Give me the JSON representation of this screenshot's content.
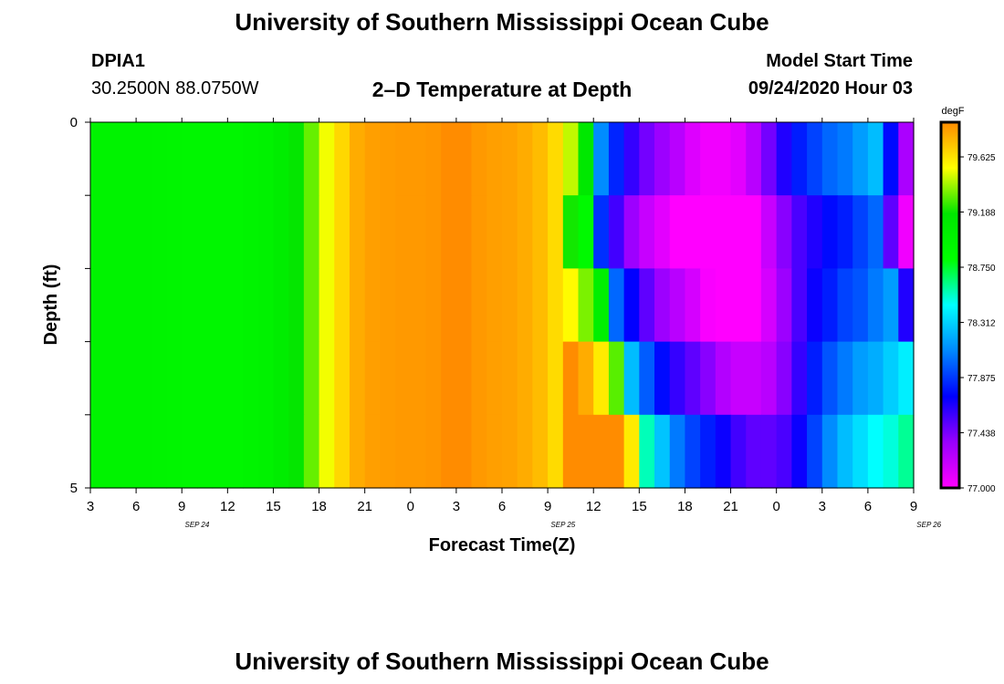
{
  "page": {
    "top_title": "University of Southern Mississippi Ocean Cube",
    "bottom_title": "University of Southern Mississippi Ocean Cube",
    "station_id": "DPIA1",
    "location": "30.2500N 88.0750W",
    "plot_title": "2–D Temperature at Depth",
    "model_start_label": "Model Start Time",
    "model_start_value": "09/24/2020 Hour 03"
  },
  "chart_data": {
    "type": "heatmap",
    "title": "2–D Temperature at Depth",
    "xlabel": "Forecast Time(Z)",
    "ylabel": "Depth (ft)",
    "units": "degF",
    "y_ticks": [
      "0",
      "5"
    ],
    "ylim": [
      0,
      5
    ],
    "x_tick_labels": [
      "3",
      "6",
      "9",
      "12",
      "15",
      "18",
      "21",
      "0",
      "3",
      "6",
      "9",
      "12",
      "15",
      "18",
      "21",
      "0",
      "3",
      "6",
      "9"
    ],
    "date_labels": [
      {
        "text": "SEP 24",
        "hour_index": 7
      },
      {
        "text": "SEP 25",
        "hour_index": 31
      },
      {
        "text": "SEP 26",
        "hour_index": 55
      }
    ],
    "hours": 54,
    "depth_levels": 5,
    "colorbar": {
      "min": 77.0,
      "max": 79.9,
      "labels": [
        "79.625",
        "79.188",
        "78.750",
        "78.312",
        "77.875",
        "77.438",
        "77.000"
      ],
      "stops": [
        "#ff00ff",
        "#9900ff",
        "#0000ff",
        "#0088ff",
        "#00ffff",
        "#00ff00",
        "#00e600",
        "#ffff00",
        "#ff8c00"
      ]
    },
    "column_temps_surface": [
      78.99,
      78.99,
      78.99,
      78.98,
      78.97,
      78.96,
      78.95,
      78.94,
      78.94,
      78.95,
      78.97,
      79.0,
      79.08,
      79.18,
      79.32,
      79.52,
      79.66,
      79.8,
      79.84,
      79.85,
      79.86,
      79.86,
      79.87,
      79.98,
      79.99,
      79.86,
      79.84,
      79.83,
      79.8,
      79.75,
      79.65,
      79.45,
      79.15,
      78.1,
      77.82,
      77.6,
      77.45,
      77.35,
      77.25,
      77.12,
      77.05,
      77.05,
      77.1,
      77.25,
      77.45,
      77.65,
      77.8,
      77.9,
      78.0,
      78.05,
      78.15,
      78.25,
      77.75,
      77.3
    ],
    "depth_adjust": {
      "start_hour": 31,
      "delta_per_level": [
        0,
        -0.25,
        -0.1,
        0.15,
        0.45
      ],
      "front_shift_per_level": [
        0,
        0,
        1,
        2,
        3
      ]
    }
  }
}
